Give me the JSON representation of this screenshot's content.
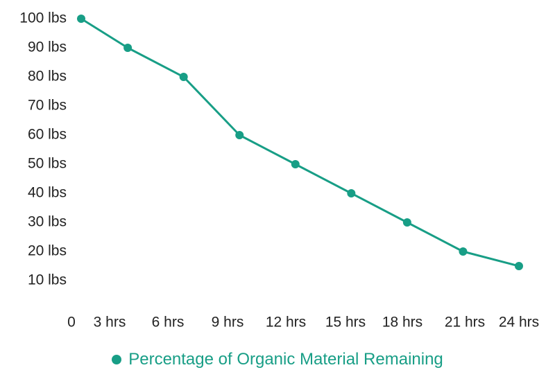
{
  "chart_data": {
    "type": "line",
    "title": "",
    "xlabel": "",
    "ylabel": "",
    "categories": [
      "0",
      "3 hrs",
      "6 hrs",
      "9 hrs",
      "12 hrs",
      "15 hrs",
      "18 hrs",
      "21 hrs",
      "24 hrs"
    ],
    "y_tick_labels": [
      "10 lbs",
      "20 lbs",
      "30 lbs",
      "40 lbs",
      "50 lbs",
      "60 lbs",
      "70 lbs",
      "80 lbs",
      "90 lbs",
      "100 lbs"
    ],
    "y_ticks": [
      10,
      20,
      30,
      40,
      50,
      60,
      70,
      80,
      90,
      100
    ],
    "ylim": [
      10,
      100
    ],
    "grid": false,
    "legend_position": "bottom",
    "series": [
      {
        "name": "Percentage of Organic Material Remaining",
        "color": "#189E86",
        "x": [
          0.5,
          3,
          6,
          9,
          12,
          15,
          18,
          21,
          24
        ],
        "values": [
          100,
          90,
          80,
          60,
          50,
          40,
          30,
          20,
          15
        ]
      }
    ]
  }
}
